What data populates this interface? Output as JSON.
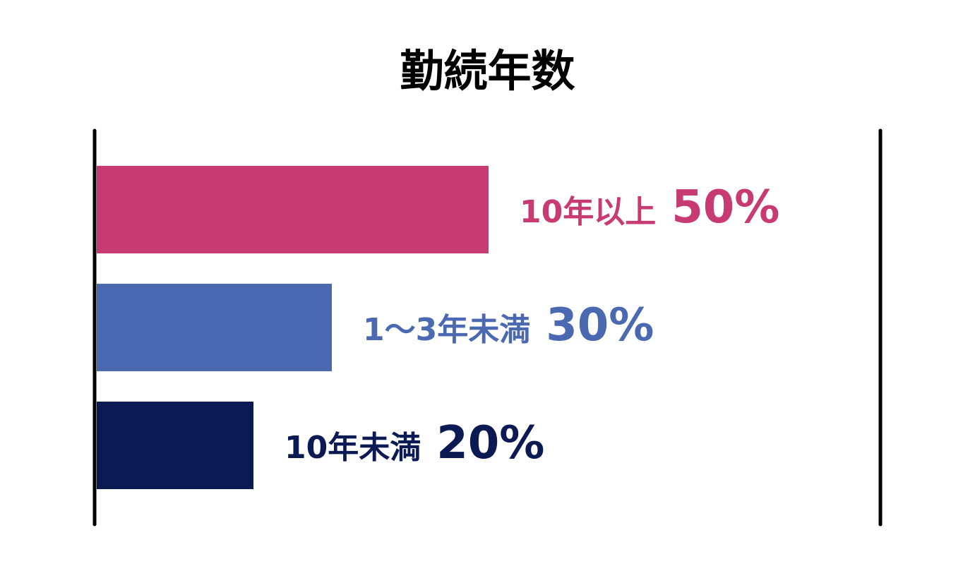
{
  "chart_data": {
    "type": "bar",
    "orientation": "horizontal",
    "title": "勤続年数",
    "categories": [
      "10年以上",
      "1〜3年未満",
      "10年未満"
    ],
    "values": [
      50,
      30,
      20
    ],
    "value_labels": [
      "50%",
      "30%",
      "20%"
    ],
    "unit": "%",
    "xlim": [
      0,
      100
    ],
    "grid": false,
    "legend": "none",
    "colors": [
      "#C83A72",
      "#4A69B0",
      "#0C1A54"
    ]
  }
}
